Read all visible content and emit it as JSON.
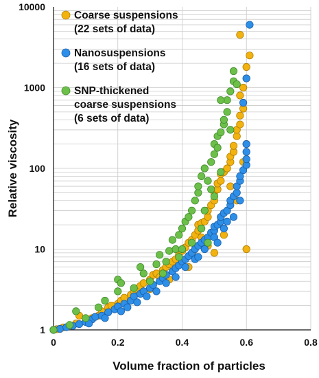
{
  "chart_data": {
    "type": "scatter",
    "xlabel": "Volume fraction of particles",
    "ylabel": "Relative viscosity",
    "xlim": [
      0,
      0.8
    ],
    "ylim": [
      1,
      10000
    ],
    "y_scale": "log",
    "x_ticks": [
      "0",
      "0.2",
      "0.4",
      "0.6",
      "0.8"
    ],
    "y_ticks": [
      "1",
      "10",
      "100",
      "1000",
      "10000"
    ],
    "grid": true,
    "legend_position": "top-left",
    "legend": [
      {
        "lines": [
          "Coarse suspensions",
          "(22 sets of data)"
        ],
        "color": "#F2B20F"
      },
      {
        "lines": [
          "Nanosuspensions",
          "(16 sets of data)"
        ],
        "color": "#2E8FE8"
      },
      {
        "lines": [
          "SNP-thickened",
          "coarse suspensions",
          "(6 sets of data)"
        ],
        "color": "#6CC04A"
      }
    ],
    "series": [
      {
        "color": "#F2B20F",
        "points": [
          [
            0.01,
            1.02
          ],
          [
            0.03,
            1.07
          ],
          [
            0.05,
            1.12
          ],
          [
            0.07,
            1.2
          ],
          [
            0.08,
            1.5
          ],
          [
            0.1,
            1.3
          ],
          [
            0.12,
            1.4
          ],
          [
            0.14,
            1.5
          ],
          [
            0.15,
            1.7
          ],
          [
            0.17,
            1.9
          ],
          [
            0.2,
            2.1
          ],
          [
            0.21,
            2.3
          ],
          [
            0.22,
            2.5
          ],
          [
            0.24,
            2.7
          ],
          [
            0.25,
            3.0
          ],
          [
            0.26,
            3.2
          ],
          [
            0.27,
            3.5
          ],
          [
            0.28,
            3.8
          ],
          [
            0.3,
            4.2
          ],
          [
            0.31,
            4.8
          ],
          [
            0.32,
            5.0
          ],
          [
            0.33,
            4.5
          ],
          [
            0.34,
            5.5
          ],
          [
            0.35,
            6.0
          ],
          [
            0.36,
            6.5
          ],
          [
            0.37,
            7.0
          ],
          [
            0.38,
            7.5
          ],
          [
            0.39,
            8.5
          ],
          [
            0.4,
            9.5
          ],
          [
            0.41,
            10.5
          ],
          [
            0.42,
            12
          ],
          [
            0.43,
            13
          ],
          [
            0.44,
            15
          ],
          [
            0.45,
            17
          ],
          [
            0.45,
            20
          ],
          [
            0.46,
            21
          ],
          [
            0.47,
            22
          ],
          [
            0.48,
            25
          ],
          [
            0.48,
            30
          ],
          [
            0.49,
            35
          ],
          [
            0.5,
            40
          ],
          [
            0.5,
            50
          ],
          [
            0.51,
            55
          ],
          [
            0.51,
            65
          ],
          [
            0.52,
            70
          ],
          [
            0.52,
            85
          ],
          [
            0.53,
            90
          ],
          [
            0.54,
            100
          ],
          [
            0.55,
            120
          ],
          [
            0.55,
            140
          ],
          [
            0.56,
            160
          ],
          [
            0.56,
            190
          ],
          [
            0.57,
            250
          ],
          [
            0.57,
            300
          ],
          [
            0.58,
            350
          ],
          [
            0.58,
            450
          ],
          [
            0.59,
            550
          ],
          [
            0.58,
            800
          ],
          [
            0.59,
            1000
          ],
          [
            0.6,
            1300
          ],
          [
            0.6,
            1800
          ],
          [
            0.61,
            2500
          ],
          [
            0.58,
            4500
          ],
          [
            0.6,
            10
          ],
          [
            0.57,
            40
          ],
          [
            0.53,
            15
          ],
          [
            0.5,
            9
          ],
          [
            0.48,
            11
          ],
          [
            0.44,
            8
          ],
          [
            0.42,
            6
          ],
          [
            0.36,
            4.2
          ],
          [
            0.3,
            3.2
          ],
          [
            0.18,
            2.0
          ],
          [
            0.52,
            25
          ],
          [
            0.55,
            60
          ],
          [
            0.59,
            120
          ],
          [
            0.6,
            200
          ],
          [
            0.46,
            14
          ],
          [
            0.4,
            7
          ]
        ]
      },
      {
        "color": "#2E8FE8",
        "points": [
          [
            0.0,
            1.0
          ],
          [
            0.02,
            1.03
          ],
          [
            0.04,
            1.08
          ],
          [
            0.06,
            1.12
          ],
          [
            0.08,
            1.18
          ],
          [
            0.1,
            1.25
          ],
          [
            0.12,
            1.35
          ],
          [
            0.13,
            1.45
          ],
          [
            0.15,
            1.5
          ],
          [
            0.17,
            1.65
          ],
          [
            0.19,
            1.8
          ],
          [
            0.2,
            1.95
          ],
          [
            0.22,
            2.1
          ],
          [
            0.24,
            2.3
          ],
          [
            0.25,
            2.6
          ],
          [
            0.27,
            2.8
          ],
          [
            0.28,
            3.0
          ],
          [
            0.3,
            3.3
          ],
          [
            0.31,
            3.6
          ],
          [
            0.33,
            4.0
          ],
          [
            0.34,
            4.4
          ],
          [
            0.35,
            4.8
          ],
          [
            0.37,
            5.3
          ],
          [
            0.38,
            5.8
          ],
          [
            0.39,
            6.3
          ],
          [
            0.4,
            7.0
          ],
          [
            0.41,
            7.5
          ],
          [
            0.42,
            8.2
          ],
          [
            0.43,
            9.0
          ],
          [
            0.44,
            10
          ],
          [
            0.45,
            11
          ],
          [
            0.46,
            12
          ],
          [
            0.47,
            13
          ],
          [
            0.48,
            14
          ],
          [
            0.49,
            16
          ],
          [
            0.5,
            17
          ],
          [
            0.5,
            19
          ],
          [
            0.51,
            20
          ],
          [
            0.52,
            22
          ],
          [
            0.52,
            25
          ],
          [
            0.53,
            28
          ],
          [
            0.54,
            30
          ],
          [
            0.55,
            35
          ],
          [
            0.55,
            40
          ],
          [
            0.56,
            45
          ],
          [
            0.57,
            50
          ],
          [
            0.57,
            60
          ],
          [
            0.58,
            70
          ],
          [
            0.58,
            80
          ],
          [
            0.59,
            95
          ],
          [
            0.6,
            110
          ],
          [
            0.6,
            130
          ],
          [
            0.6,
            160
          ],
          [
            0.6,
            200
          ],
          [
            0.59,
            650
          ],
          [
            0.6,
            1300
          ],
          [
            0.61,
            6000
          ],
          [
            0.56,
            25
          ],
          [
            0.53,
            18
          ],
          [
            0.5,
            14
          ],
          [
            0.47,
            10
          ],
          [
            0.44,
            7.5
          ],
          [
            0.41,
            6
          ],
          [
            0.38,
            4.5
          ],
          [
            0.35,
            3.8
          ],
          [
            0.32,
            3.0
          ],
          [
            0.29,
            2.6
          ],
          [
            0.26,
            2.2
          ],
          [
            0.23,
            1.9
          ],
          [
            0.21,
            1.7
          ],
          [
            0.16,
            1.4
          ],
          [
            0.11,
            1.2
          ],
          [
            0.45,
            8
          ],
          [
            0.51,
            12
          ],
          [
            0.54,
            22
          ],
          [
            0.58,
            40
          ]
        ]
      },
      {
        "color": "#6CC04A",
        "points": [
          [
            0.0,
            1.0
          ],
          [
            0.05,
            1.15
          ],
          [
            0.07,
            1.7
          ],
          [
            0.1,
            1.4
          ],
          [
            0.14,
            1.9
          ],
          [
            0.16,
            2.3
          ],
          [
            0.2,
            3.0
          ],
          [
            0.2,
            4.2
          ],
          [
            0.21,
            3.8
          ],
          [
            0.25,
            3.3
          ],
          [
            0.27,
            6.0
          ],
          [
            0.28,
            5.0
          ],
          [
            0.3,
            4.0
          ],
          [
            0.32,
            6.5
          ],
          [
            0.33,
            8.5
          ],
          [
            0.35,
            7.0
          ],
          [
            0.36,
            9.5
          ],
          [
            0.37,
            13
          ],
          [
            0.38,
            10
          ],
          [
            0.39,
            15
          ],
          [
            0.4,
            18
          ],
          [
            0.41,
            22
          ],
          [
            0.42,
            25
          ],
          [
            0.43,
            30
          ],
          [
            0.44,
            40
          ],
          [
            0.45,
            50
          ],
          [
            0.45,
            60
          ],
          [
            0.46,
            80
          ],
          [
            0.47,
            100
          ],
          [
            0.48,
            70
          ],
          [
            0.49,
            120
          ],
          [
            0.5,
            150
          ],
          [
            0.5,
            200
          ],
          [
            0.51,
            180
          ],
          [
            0.51,
            250
          ],
          [
            0.52,
            280
          ],
          [
            0.53,
            350
          ],
          [
            0.53,
            400
          ],
          [
            0.54,
            500
          ],
          [
            0.54,
            700
          ],
          [
            0.55,
            900
          ],
          [
            0.56,
            1200
          ],
          [
            0.56,
            1600
          ],
          [
            0.57,
            1100
          ],
          [
            0.52,
            700
          ],
          [
            0.47,
            30
          ],
          [
            0.43,
            12
          ],
          [
            0.39,
            8
          ],
          [
            0.34,
            5
          ],
          [
            0.46,
            18
          ],
          [
            0.49,
            55
          ],
          [
            0.52,
            90
          ],
          [
            0.5,
            45
          ],
          [
            0.55,
            300
          ],
          [
            0.48,
            12
          ],
          [
            0.4,
            10
          ]
        ]
      }
    ]
  }
}
